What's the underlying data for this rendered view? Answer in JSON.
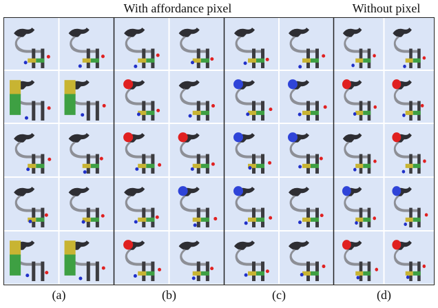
{
  "header": {
    "left": "With affordance pixel",
    "right": "Without pixel"
  },
  "panels": [
    {
      "label": "(a)"
    },
    {
      "label": "(b)"
    },
    {
      "label": "(c)"
    },
    {
      "label": "(d)"
    }
  ]
}
